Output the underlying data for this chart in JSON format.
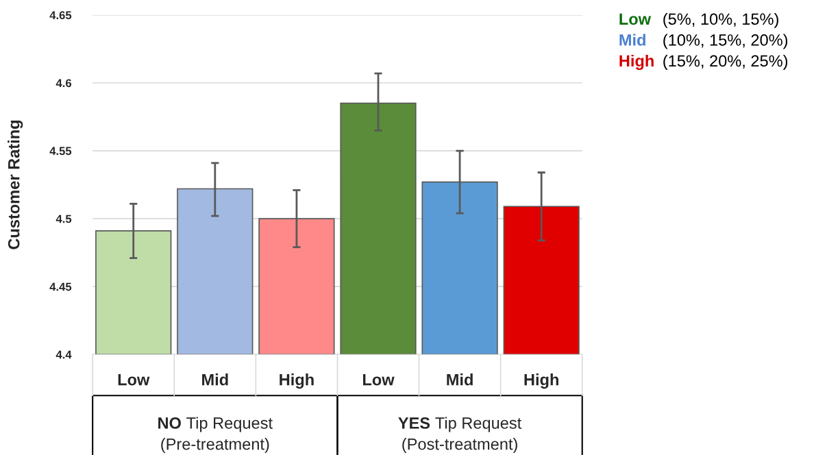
{
  "chart_data": {
    "type": "bar",
    "ylabel": "Customer Rating",
    "categories": [
      "Low",
      "Mid",
      "High",
      "Low",
      "Mid",
      "High"
    ],
    "series": [
      {
        "name": "Low (5%, 10%, 15%)",
        "color": "#0f6e0f",
        "colors": [
          "#c0dda8",
          null,
          null,
          "#5b8c3a",
          null,
          null
        ],
        "values": [
          4.491,
          null,
          null,
          4.585,
          null,
          null
        ],
        "errors": [
          [
            4.471,
            4.511
          ],
          null,
          null,
          [
            4.565,
            4.607
          ],
          null,
          null
        ]
      },
      {
        "name": "Mid (10%, 15%, 20%)",
        "color": "#4a7fd0",
        "colors": [
          null,
          "#a2b9e2",
          null,
          null,
          "#5b9bd5",
          null
        ],
        "values": [
          null,
          4.522,
          null,
          null,
          4.527,
          null
        ],
        "errors": [
          null,
          [
            4.502,
            4.541
          ],
          null,
          null,
          [
            4.504,
            4.55
          ],
          null
        ]
      },
      {
        "name": "High (15%, 20%, 25%)",
        "color": "#d40000",
        "colors": [
          null,
          null,
          "#ff8888",
          null,
          null,
          "#e00000"
        ],
        "values": [
          null,
          null,
          4.5,
          null,
          null,
          4.509
        ],
        "errors": [
          null,
          null,
          [
            4.479,
            4.521
          ],
          null,
          null,
          [
            4.484,
            4.534
          ]
        ]
      }
    ],
    "annotations": [
      "NO Tip Request\n(Pre-treatment)",
      "YES Tip Request\n(Post-treatment)"
    ],
    "ylim": [
      4.4,
      4.65
    ],
    "yticks": [
      4.4,
      4.45,
      4.5,
      4.55,
      4.6,
      4.65
    ],
    "grid": "y",
    "legend": "top right"
  }
}
